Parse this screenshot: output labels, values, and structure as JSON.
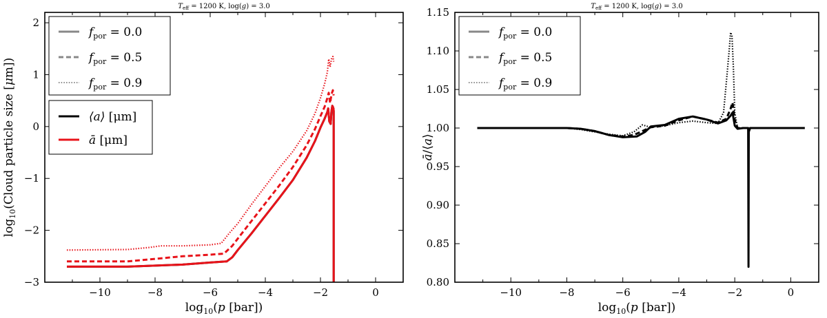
{
  "chart_data": [
    {
      "type": "line",
      "title": "T_eff = 1200 K, log(g) = 3.0",
      "title_parts": {
        "t": "T",
        "t_sub": "eff",
        "rest": " = 1200 K, log(",
        "g": "g",
        "end": ") = 3.0"
      },
      "xlabel": "log10(p [bar])",
      "ylabel": "log10(Cloud particle size [μm])",
      "xlim": [
        -12,
        1
      ],
      "ylim": [
        -3,
        2.2
      ],
      "xticks": [
        -10,
        -8,
        -6,
        -4,
        -2,
        0
      ],
      "xtick_labels": [
        "−10",
        "−8",
        "−6",
        "−4",
        "−2",
        "0"
      ],
      "yticks": [
        -3,
        -2,
        -1,
        0,
        1,
        2
      ],
      "ytick_labels": [
        "−3",
        "−2",
        "−1",
        "0",
        "1",
        "2"
      ],
      "legend_position": "top-left",
      "legend_style": [
        {
          "label": "f_por = 0.0",
          "value": "0.0",
          "dash": "solid"
        },
        {
          "label": "f_por = 0.5",
          "value": "0.5",
          "dash": "dashed"
        },
        {
          "label": "f_por = 0.9",
          "value": "0.9",
          "dash": "dotted"
        }
      ],
      "legend_quantity": [
        {
          "label": "⟨a⟩ [μm]",
          "symbol": "⟨a⟩",
          "unit": " [μm]",
          "color": "#000000"
        },
        {
          "label": "ā [μm]",
          "symbol": "ā",
          "unit": " [μm]",
          "color": "#e8131a"
        }
      ],
      "series": [
        {
          "name": "⟨a⟩, f_por = 0.0",
          "color": "#000000",
          "dash": "solid",
          "x": [
            -11.2,
            -9,
            -7,
            -6,
            -5.4,
            -5.2,
            -5,
            -4.5,
            -4,
            -3.5,
            -3,
            -2.5,
            -2.2,
            -2,
            -1.85,
            -1.75,
            -1.72,
            -1.68,
            -1.63,
            -1.6,
            -1.57,
            -1.55,
            -1.53,
            -1.52,
            -1.52,
            -1.51
          ],
          "y": [
            -2.7,
            -2.7,
            -2.66,
            -2.62,
            -2.6,
            -2.52,
            -2.38,
            -2.06,
            -1.72,
            -1.38,
            -1.03,
            -0.6,
            -0.28,
            -0.02,
            0.15,
            0.28,
            0.35,
            0.1,
            0.05,
            0.3,
            0.4,
            0.38,
            0.35,
            0.3,
            -3.1,
            -3.1
          ]
        },
        {
          "name": "ā, f_por = 0.0",
          "color": "#e8131a",
          "dash": "solid",
          "x": [
            -11.2,
            -9,
            -7,
            -6,
            -5.4,
            -5.2,
            -5,
            -4.5,
            -4,
            -3.5,
            -3,
            -2.5,
            -2.2,
            -2,
            -1.85,
            -1.75,
            -1.72,
            -1.68,
            -1.63,
            -1.6,
            -1.57,
            -1.55,
            -1.53,
            -1.52,
            -1.52,
            -1.51
          ],
          "y": [
            -2.7,
            -2.7,
            -2.66,
            -2.62,
            -2.6,
            -2.52,
            -2.38,
            -2.06,
            -1.72,
            -1.38,
            -1.03,
            -0.6,
            -0.28,
            -0.02,
            0.15,
            0.28,
            0.35,
            0.1,
            0.05,
            0.3,
            0.4,
            0.38,
            0.35,
            0.3,
            -3.1,
            -3.1
          ]
        },
        {
          "name": "ā, f_por = 0.5",
          "color": "#e8131a",
          "dash": "dashed",
          "x": [
            -11.2,
            -9,
            -8,
            -7,
            -6,
            -5.5,
            -5.2,
            -5,
            -4.5,
            -4,
            -3.5,
            -3,
            -2.5,
            -2.2,
            -2,
            -1.85,
            -1.75,
            -1.7,
            -1.65,
            -1.6,
            -1.55,
            -1.52
          ],
          "y": [
            -2.6,
            -2.6,
            -2.55,
            -2.5,
            -2.47,
            -2.45,
            -2.3,
            -2.16,
            -1.82,
            -1.48,
            -1.14,
            -0.78,
            -0.36,
            -0.05,
            0.2,
            0.38,
            0.55,
            0.65,
            0.45,
            0.62,
            0.7,
            0.6
          ]
        },
        {
          "name": "ā, f_por = 0.9",
          "color": "#e8131a",
          "dash": "dotted",
          "x": [
            -11.2,
            -9,
            -8.2,
            -7.8,
            -7,
            -6,
            -5.6,
            -5.3,
            -5,
            -4.5,
            -4,
            -3.5,
            -3,
            -2.5,
            -2.2,
            -2,
            -1.85,
            -1.75,
            -1.7,
            -1.65,
            -1.6,
            -1.55,
            -1.52
          ],
          "y": [
            -2.38,
            -2.37,
            -2.33,
            -2.3,
            -2.3,
            -2.28,
            -2.25,
            -2.05,
            -1.87,
            -1.5,
            -1.15,
            -0.8,
            -0.48,
            -0.08,
            0.25,
            0.55,
            0.82,
            1.05,
            1.3,
            1.15,
            1.3,
            1.35,
            1.25
          ]
        }
      ]
    },
    {
      "type": "line",
      "title": "T_eff = 1200 K, log(g) = 3.0",
      "title_parts": {
        "t": "T",
        "t_sub": "eff",
        "rest": " = 1200 K, log(",
        "g": "g",
        "end": ") = 3.0"
      },
      "xlabel": "log10(p [bar])",
      "ylabel": "ā/⟨a⟩",
      "xlim": [
        -12,
        1
      ],
      "ylim": [
        0.8,
        1.15
      ],
      "xticks": [
        -10,
        -8,
        -6,
        -4,
        -2,
        0
      ],
      "xtick_labels": [
        "−10",
        "−8",
        "−6",
        "−4",
        "−2",
        "0"
      ],
      "yticks": [
        0.8,
        0.85,
        0.9,
        0.95,
        1.0,
        1.05,
        1.1,
        1.15
      ],
      "ytick_labels": [
        "0.80",
        "0.85",
        "0.90",
        "0.95",
        "1.00",
        "1.05",
        "1.10",
        "1.15"
      ],
      "legend_position": "top-left",
      "legend_style": [
        {
          "label": "f_por = 0.0",
          "value": "0.0",
          "dash": "solid"
        },
        {
          "label": "f_por = 0.5",
          "value": "0.5",
          "dash": "dashed"
        },
        {
          "label": "f_por = 0.9",
          "value": "0.9",
          "dash": "dotted"
        }
      ],
      "series": [
        {
          "name": "f_por = 0.9",
          "color": "#000000",
          "dash": "dotted",
          "x": [
            -11.2,
            -8,
            -7.5,
            -7,
            -6.5,
            -6,
            -5.6,
            -5.3,
            -5,
            -4.5,
            -4,
            -3.5,
            -3,
            -2.6,
            -2.4,
            -2.3,
            -2.2,
            -2.15,
            -2.1,
            -2.05,
            -2.0,
            -1.9,
            -1.7,
            -1.5,
            0.5
          ],
          "y": [
            1.0,
            1.0,
            0.998,
            0.995,
            0.992,
            0.99,
            0.995,
            1.004,
            1.001,
            1.003,
            1.007,
            1.009,
            1.007,
            1.006,
            1.02,
            1.06,
            1.1,
            1.124,
            1.12,
            1.08,
            1.02,
            1.0,
            1.0,
            1.0,
            1.0
          ]
        },
        {
          "name": "f_por = 0.5",
          "color": "#000000",
          "dash": "dashed",
          "x": [
            -11.2,
            -8,
            -7.5,
            -7,
            -6.5,
            -6,
            -5.6,
            -5.3,
            -5,
            -4.5,
            -4,
            -3.5,
            -3,
            -2.6,
            -2.3,
            -2.15,
            -2.08,
            -2.0,
            -1.9,
            -1.7,
            -1.5,
            0.5
          ],
          "y": [
            1.0,
            1.0,
            0.999,
            0.996,
            0.991,
            0.989,
            0.991,
            0.996,
            1.001,
            1.003,
            1.01,
            1.015,
            1.011,
            1.007,
            1.012,
            1.025,
            1.033,
            1.01,
            1.0,
            1.0,
            1.0,
            1.0
          ]
        },
        {
          "name": "f_por = 0.0",
          "color": "#000000",
          "dash": "solid",
          "x": [
            -11.2,
            -8,
            -7.5,
            -7,
            -6.5,
            -6,
            -5.5,
            -5.2,
            -5,
            -4.5,
            -4,
            -3.5,
            -3,
            -2.6,
            -2.3,
            -2.15,
            -2.08,
            -2.0,
            -1.9,
            -1.7,
            -1.55,
            -1.52,
            -1.51,
            -1.5,
            -1.45,
            0.5
          ],
          "y": [
            1.0,
            1.0,
            0.999,
            0.996,
            0.991,
            0.988,
            0.989,
            0.995,
            1.002,
            1.004,
            1.012,
            1.015,
            1.011,
            1.006,
            1.01,
            1.016,
            1.02,
            1.003,
            0.999,
            1.0,
            1.0,
            1.0,
            0.82,
            0.995,
            1.0,
            1.0
          ]
        }
      ]
    }
  ]
}
